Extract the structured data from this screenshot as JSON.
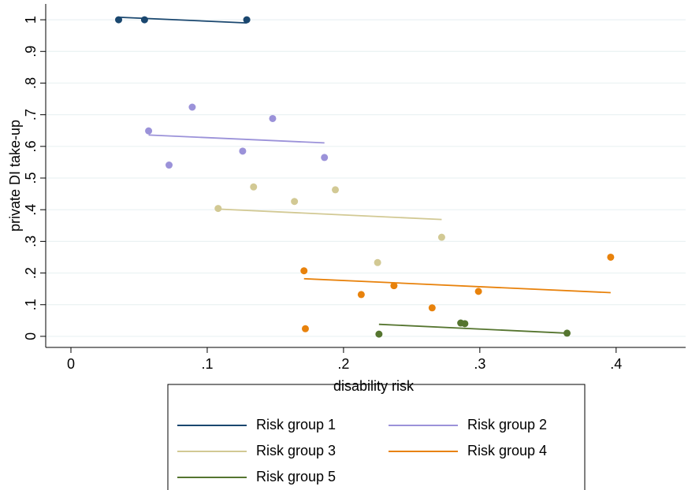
{
  "chart_data": {
    "type": "scatter",
    "x_label": "disability risk",
    "y_label": "private DI take-up",
    "xlim": [
      -0.0185,
      0.451
    ],
    "ylim": [
      -0.035,
      1.05
    ],
    "xticks": [
      0,
      {
        "value": 0.1,
        "label": ".1"
      },
      {
        "value": 0.2,
        "label": ".2"
      },
      {
        "value": 0.3,
        "label": ".3"
      },
      {
        "value": 0.4,
        "label": ".4"
      }
    ],
    "yticks": [
      0,
      {
        "value": 0.1,
        "label": ".1"
      },
      {
        "value": 0.2,
        "label": ".2"
      },
      {
        "value": 0.3,
        "label": ".3"
      },
      {
        "value": 0.4,
        "label": ".4"
      },
      {
        "value": 0.5,
        "label": ".5"
      },
      {
        "value": 0.6,
        "label": ".6"
      },
      {
        "value": 0.7,
        "label": ".7"
      },
      {
        "value": 0.8,
        "label": ".8"
      },
      {
        "value": 0.9,
        "label": ".9"
      },
      1
    ],
    "grid": true,
    "series": [
      {
        "name": "Risk group 1",
        "color": "#1a476f",
        "x": [
          0.035,
          0.054,
          0.129
        ],
        "y": [
          1.0,
          1.0,
          1.0
        ],
        "fit": {
          "x": [
            0.035,
            0.129
          ],
          "y": [
            1.008,
            0.99
          ]
        }
      },
      {
        "name": "Risk group 2",
        "color": "#9b92d9",
        "x": [
          0.089,
          0.148,
          0.057,
          0.126,
          0.186,
          0.072
        ],
        "y": [
          0.724,
          0.688,
          0.649,
          0.585,
          0.565,
          0.541
        ],
        "fit": {
          "x": [
            0.057,
            0.186
          ],
          "y": [
            0.636,
            0.611
          ]
        }
      },
      {
        "name": "Risk group 3",
        "color": "#d2c994",
        "x": [
          0.134,
          0.194,
          0.164,
          0.108,
          0.272,
          0.225
        ],
        "y": [
          0.472,
          0.463,
          0.426,
          0.404,
          0.313,
          0.233
        ],
        "fit": {
          "x": [
            0.108,
            0.272
          ],
          "y": [
            0.402,
            0.369
          ]
        }
      },
      {
        "name": "Risk group 4",
        "color": "#e8820c",
        "x": [
          0.171,
          0.396,
          0.237,
          0.299,
          0.213,
          0.265,
          0.172
        ],
        "y": [
          0.207,
          0.25,
          0.16,
          0.142,
          0.132,
          0.09,
          0.024
        ],
        "fit": {
          "x": [
            0.171,
            0.396
          ],
          "y": [
            0.182,
            0.138
          ]
        }
      },
      {
        "name": "Risk group 5",
        "color": "#55752f",
        "x": [
          0.226,
          0.286,
          0.289,
          0.364
        ],
        "y": [
          0.007,
          0.042,
          0.04,
          0.01
        ],
        "fit": {
          "x": [
            0.226,
            0.364
          ],
          "y": [
            0.038,
            0.01
          ]
        }
      }
    ]
  }
}
